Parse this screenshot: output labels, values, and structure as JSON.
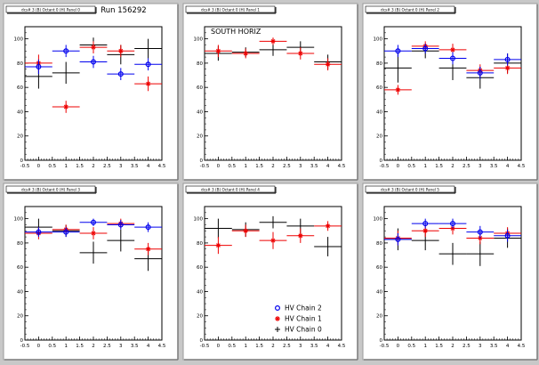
{
  "canvas": {
    "run_label": "Run 156292"
  },
  "legend": {
    "items": [
      {
        "label": "HV Chain 2",
        "color": "#0000ee",
        "marker": "circle"
      },
      {
        "label": "HV Chain 1",
        "color": "#ee0000",
        "marker": "star"
      },
      {
        "label": "HV Chain 0",
        "color": "#000000",
        "marker": "cross"
      }
    ]
  },
  "chart_data": [
    {
      "type": "scatter",
      "title": "dcs# 3 (B) Octant 0 (H) Panel 0",
      "xlim": [
        -0.5,
        4.5
      ],
      "ylim": [
        0,
        110
      ],
      "xticks": [
        "-0.5",
        "0",
        "0.5",
        "1",
        "1.5",
        "2",
        "2.5",
        "3",
        "3.5",
        "4",
        "4.5"
      ],
      "yticks": [
        "0",
        "20",
        "40",
        "60",
        "80",
        "100"
      ],
      "series": [
        {
          "name": "HV Chain 2",
          "points": [
            [
              0,
              77,
              6
            ],
            [
              1,
              90,
              5
            ],
            [
              2,
              81,
              5
            ],
            [
              3,
              71,
              5
            ],
            [
              4,
              79,
              5
            ]
          ]
        },
        {
          "name": "HV Chain 1",
          "points": [
            [
              0,
              80,
              7
            ],
            [
              1,
              44,
              5
            ],
            [
              2,
              93,
              5
            ],
            [
              3,
              90,
              5
            ],
            [
              4,
              63,
              6
            ]
          ]
        },
        {
          "name": "HV Chain 0",
          "points": [
            [
              0,
              69,
              10
            ],
            [
              1,
              72,
              9
            ],
            [
              2,
              95,
              6
            ],
            [
              3,
              87,
              8
            ],
            [
              4,
              92,
              8
            ]
          ]
        }
      ]
    },
    {
      "type": "scatter",
      "title": "dcs# 3 (B) Octant 0 (H) Panel 1",
      "annotation": "SOUTH HORIZ",
      "xlim": [
        -0.5,
        4.5
      ],
      "ylim": [
        0,
        110
      ],
      "xticks": [
        "-0.5",
        "0",
        "0.5",
        "1",
        "1.5",
        "2",
        "2.5",
        "3",
        "3.5",
        "4",
        "4.5"
      ],
      "yticks": [
        "0",
        "20",
        "40",
        "60",
        "80",
        "100"
      ],
      "series": [
        {
          "name": "HV Chain 2",
          "points": []
        },
        {
          "name": "HV Chain 1",
          "points": [
            [
              0,
              90,
              5
            ],
            [
              1,
              88,
              4
            ],
            [
              2,
              98,
              3
            ],
            [
              3,
              88,
              5
            ],
            [
              4,
              79,
              5
            ]
          ]
        },
        {
          "name": "HV Chain 0",
          "points": [
            [
              0,
              88,
              6
            ],
            [
              1,
              89,
              4
            ],
            [
              2,
              91,
              5
            ],
            [
              3,
              93,
              5
            ],
            [
              4,
              81,
              6
            ]
          ]
        }
      ]
    },
    {
      "type": "scatter",
      "title": "dcs# 3 (B) Octant 0 (H) Panel 2",
      "xlim": [
        -0.5,
        4.5
      ],
      "ylim": [
        0,
        110
      ],
      "xticks": [
        "-0.5",
        "0",
        "0.5",
        "1",
        "1.5",
        "2",
        "2.5",
        "3",
        "3.5",
        "4",
        "4.5"
      ],
      "yticks": [
        "0",
        "20",
        "40",
        "60",
        "80",
        "100"
      ],
      "series": [
        {
          "name": "HV Chain 2",
          "points": [
            [
              0,
              90,
              5
            ],
            [
              1,
              92,
              4
            ],
            [
              2,
              84,
              5
            ],
            [
              3,
              72,
              5
            ],
            [
              4,
              83,
              5
            ]
          ]
        },
        {
          "name": "HV Chain 1",
          "points": [
            [
              0,
              58,
              4
            ],
            [
              1,
              94,
              4
            ],
            [
              2,
              91,
              5
            ],
            [
              3,
              74,
              5
            ],
            [
              4,
              76,
              5
            ]
          ]
        },
        {
          "name": "HV Chain 0",
          "points": [
            [
              0,
              76,
              12
            ],
            [
              1,
              90,
              6
            ],
            [
              2,
              76,
              10
            ],
            [
              3,
              68,
              9
            ],
            [
              4,
              80,
              8
            ]
          ]
        }
      ]
    },
    {
      "type": "scatter",
      "title": "dcs# 3 (B) Octant 0 (H) Panel 3",
      "xlim": [
        -0.5,
        4.5
      ],
      "ylim": [
        0,
        110
      ],
      "xticks": [
        "-0.5",
        "0",
        "0.5",
        "1",
        "1.5",
        "2",
        "2.5",
        "3",
        "3.5",
        "4",
        "4.5"
      ],
      "yticks": [
        "0",
        "20",
        "40",
        "60",
        "80",
        "100"
      ],
      "series": [
        {
          "name": "HV Chain 2",
          "points": [
            [
              0,
              89,
              4
            ],
            [
              1,
              89,
              4
            ],
            [
              2,
              97,
              3
            ],
            [
              3,
              95,
              4
            ],
            [
              4,
              93,
              4
            ]
          ]
        },
        {
          "name": "HV Chain 1",
          "points": [
            [
              0,
              88,
              5
            ],
            [
              1,
              91,
              4
            ],
            [
              2,
              88,
              5
            ],
            [
              3,
              96,
              4
            ],
            [
              4,
              75,
              5
            ]
          ]
        },
        {
          "name": "HV Chain 0",
          "points": [
            [
              0,
              93,
              7
            ],
            [
              1,
              90,
              5
            ],
            [
              2,
              72,
              9
            ],
            [
              3,
              82,
              9
            ],
            [
              4,
              67,
              10
            ]
          ]
        }
      ]
    },
    {
      "type": "scatter",
      "title": "dcs# 3 (B) Octant 0 (H) Panel 4",
      "xlim": [
        -0.5,
        4.5
      ],
      "ylim": [
        0,
        110
      ],
      "xticks": [
        "-0.5",
        "0",
        "0.5",
        "1",
        "1.5",
        "2",
        "2.5",
        "3",
        "3.5",
        "4",
        "4.5"
      ],
      "yticks": [
        "0",
        "20",
        "40",
        "60",
        "80",
        "100"
      ],
      "series": [
        {
          "name": "HV Chain 2",
          "points": []
        },
        {
          "name": "HV Chain 1",
          "points": [
            [
              0,
              78,
              7
            ],
            [
              1,
              90,
              5
            ],
            [
              2,
              82,
              7
            ],
            [
              3,
              86,
              6
            ],
            [
              4,
              94,
              4
            ]
          ]
        },
        {
          "name": "HV Chain 0",
          "points": [
            [
              0,
              92,
              8
            ],
            [
              1,
              91,
              6
            ],
            [
              2,
              97,
              5
            ],
            [
              3,
              94,
              6
            ],
            [
              4,
              77,
              8
            ]
          ]
        }
      ]
    },
    {
      "type": "scatter",
      "title": "dcs# 3 (B) Octant 0 (H) Panel 5",
      "xlim": [
        -0.5,
        4.5
      ],
      "ylim": [
        0,
        110
      ],
      "xticks": [
        "-0.5",
        "0",
        "0.5",
        "1",
        "1.5",
        "2",
        "2.5",
        "3",
        "3.5",
        "4",
        "4.5"
      ],
      "yticks": [
        "0",
        "20",
        "40",
        "60",
        "80",
        "100"
      ],
      "series": [
        {
          "name": "HV Chain 2",
          "points": [
            [
              0,
              83,
              5
            ],
            [
              1,
              96,
              4
            ],
            [
              2,
              96,
              4
            ],
            [
              3,
              89,
              5
            ],
            [
              4,
              86,
              5
            ]
          ]
        },
        {
          "name": "HV Chain 1",
          "points": [
            [
              0,
              84,
              6
            ],
            [
              1,
              90,
              5
            ],
            [
              2,
              92,
              5
            ],
            [
              3,
              84,
              5
            ],
            [
              4,
              88,
              5
            ]
          ]
        },
        {
          "name": "HV Chain 0",
          "points": [
            [
              0,
              83,
              9
            ],
            [
              1,
              82,
              8
            ],
            [
              2,
              71,
              9
            ],
            [
              3,
              71,
              10
            ],
            [
              4,
              84,
              8
            ]
          ]
        }
      ]
    }
  ]
}
